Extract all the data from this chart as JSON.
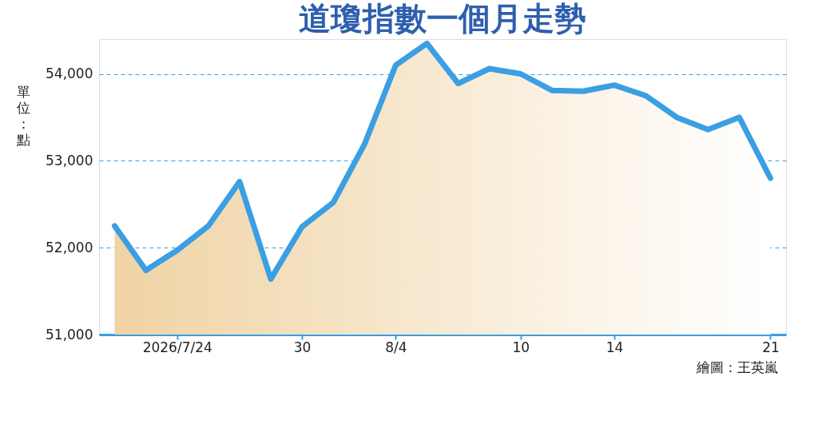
{
  "chart_data": {
    "type": "area",
    "title": "道瓊指數一個月走勢",
    "ylabel": "單位：點",
    "categories": [
      null,
      null,
      "2026/7/24",
      null,
      null,
      null,
      "30",
      null,
      null,
      "8/4",
      null,
      null,
      null,
      "10",
      null,
      null,
      "14",
      null,
      null,
      null,
      null,
      "21"
    ],
    "series": [
      {
        "color": "#3a9fe3",
        "values": [
          52250,
          51740,
          51970,
          52250,
          52760,
          51640,
          52240,
          52520,
          53190,
          54100,
          54350,
          53890,
          54060,
          54000,
          53810,
          53800,
          53870,
          53750,
          53500,
          53360,
          53500,
          52800
        ]
      }
    ],
    "ylim": [
      51000,
      54400
    ],
    "yticks": [
      {
        "value": 51000,
        "label": "51,000"
      },
      {
        "value": 52000,
        "label": "52,000"
      },
      {
        "value": 53000,
        "label": "53,000"
      },
      {
        "value": 54000,
        "label": "54,000"
      }
    ],
    "grid": "y",
    "annotations": [
      "繪圖：王英嵐"
    ]
  }
}
